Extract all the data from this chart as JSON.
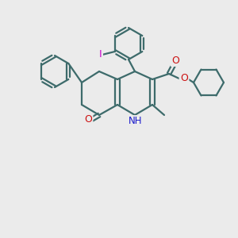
{
  "background_color": "#ebebeb",
  "bond_color": "#3d6b6b",
  "bond_width": 1.6,
  "atom_colors": {
    "N": "#1a1acc",
    "O": "#cc1111",
    "I": "#cc00cc",
    "H": "#3d6b6b",
    "C": "#3d6b6b"
  },
  "image_size": 300
}
